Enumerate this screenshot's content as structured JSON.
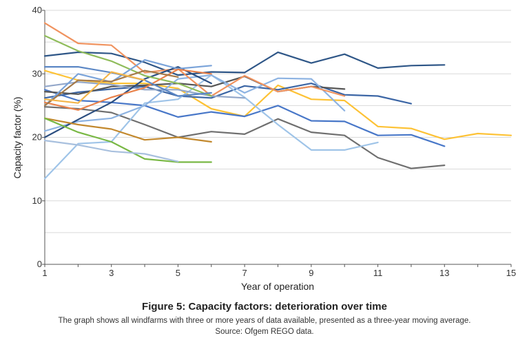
{
  "chart_data": {
    "type": "line",
    "title": "Figure 5: Capacity factors: deterioration over time",
    "subtitle": "The graph shows all windfarms with three or more years of data available, presented as a three-year moving average.",
    "source": "Source: Ofgem REGO data.",
    "xlabel": "Year of operation",
    "ylabel": "Capacity factor (%)",
    "xlim": [
      1,
      15
    ],
    "ylim": [
      0,
      40
    ],
    "xticks": [
      1,
      3,
      5,
      7,
      9,
      11,
      13,
      15
    ],
    "yticks": [
      0,
      10,
      20,
      30,
      40
    ],
    "grid": "horizontal",
    "series": [
      {
        "color": "#2e5687",
        "values": [
          [
            1,
            32.8
          ],
          [
            2,
            33.4
          ],
          [
            3,
            33.2
          ],
          [
            4,
            31.8
          ],
          [
            5,
            29.8
          ],
          [
            6,
            30.3
          ],
          [
            7,
            30.2
          ],
          [
            8,
            33.4
          ],
          [
            9,
            31.7
          ],
          [
            10,
            33.1
          ],
          [
            11,
            30.9
          ],
          [
            12,
            31.3
          ],
          [
            13,
            31.4
          ]
        ]
      },
      {
        "color": "#fdc235",
        "values": [
          [
            1,
            30.5
          ],
          [
            2,
            29
          ],
          [
            3,
            28.5
          ],
          [
            4,
            28.5
          ],
          [
            5,
            27.7
          ],
          [
            6,
            24.5
          ],
          [
            7,
            23.3
          ],
          [
            8,
            28.2
          ],
          [
            9,
            26
          ],
          [
            10,
            25.8
          ],
          [
            11,
            21.7
          ],
          [
            12,
            21.4
          ],
          [
            13,
            19.7
          ],
          [
            14,
            20.6
          ],
          [
            15,
            20.3
          ]
        ]
      },
      {
        "color": "#4877c8",
        "values": [
          [
            1,
            27.5
          ],
          [
            2,
            25.8
          ],
          [
            3,
            25.5
          ],
          [
            4,
            25
          ],
          [
            5,
            23.2
          ],
          [
            6,
            24
          ],
          [
            7,
            23.3
          ],
          [
            8,
            25
          ],
          [
            9,
            22.6
          ],
          [
            10,
            22.5
          ],
          [
            11,
            20.3
          ],
          [
            12,
            20.4
          ],
          [
            13,
            18.6
          ]
        ]
      },
      {
        "color": "#6f6f6f",
        "values": [
          [
            1,
            24.8
          ],
          [
            2,
            24.5
          ],
          [
            3,
            23.9
          ],
          [
            4,
            22
          ],
          [
            5,
            20
          ],
          [
            6,
            20.9
          ],
          [
            7,
            20.5
          ],
          [
            8,
            22.9
          ],
          [
            9,
            20.8
          ],
          [
            10,
            20.3
          ],
          [
            11,
            16.8
          ],
          [
            12,
            15.1
          ],
          [
            13,
            15.6
          ]
        ]
      },
      {
        "color": "#3c66a5",
        "values": [
          [
            1,
            26.2
          ],
          [
            2,
            27.1
          ],
          [
            3,
            27.6
          ],
          [
            4,
            28
          ],
          [
            5,
            26.5
          ],
          [
            6,
            26.2
          ],
          [
            7,
            28.1
          ],
          [
            8,
            27.5
          ],
          [
            9,
            28.5
          ],
          [
            10,
            26.7
          ],
          [
            11,
            26.5
          ],
          [
            12,
            25.3
          ]
        ]
      },
      {
        "color": "#9fc4e8",
        "values": [
          [
            1,
            13.5
          ],
          [
            2,
            19
          ],
          [
            3,
            19.3
          ],
          [
            4,
            25.4
          ],
          [
            5,
            26
          ],
          [
            6,
            29.8
          ],
          [
            7,
            26.3
          ],
          [
            8,
            22
          ],
          [
            9,
            18
          ],
          [
            10,
            18
          ],
          [
            11,
            19.2
          ]
        ]
      },
      {
        "color": "#555555",
        "values": [
          [
            1,
            27.2
          ],
          [
            2,
            26.8
          ],
          [
            3,
            28
          ],
          [
            4,
            28.2
          ],
          [
            5,
            28.5
          ],
          [
            6,
            28
          ],
          [
            7,
            29.6
          ],
          [
            8,
            27.2
          ],
          [
            9,
            28
          ],
          [
            10,
            27.6
          ]
        ]
      },
      {
        "color": "#8db3e2",
        "values": [
          [
            1,
            21
          ],
          [
            2,
            22.5
          ],
          [
            3,
            23
          ],
          [
            4,
            25
          ],
          [
            5,
            29.2
          ],
          [
            6,
            29.8
          ],
          [
            7,
            27
          ],
          [
            8,
            29.3
          ],
          [
            9,
            29.2
          ],
          [
            10,
            24.2
          ]
        ]
      },
      {
        "color": "#f0935f",
        "values": [
          [
            1,
            38
          ],
          [
            2,
            34.8
          ],
          [
            3,
            34.5
          ],
          [
            4,
            30.2
          ],
          [
            5,
            30.8
          ],
          [
            6,
            26.5
          ],
          [
            7,
            29.7
          ],
          [
            8,
            27.2
          ],
          [
            9,
            28
          ],
          [
            10,
            26.5
          ]
        ]
      },
      {
        "color": "#93a7c9",
        "values": [
          [
            1,
            28
          ],
          [
            2,
            28.7
          ],
          [
            3,
            28.3
          ],
          [
            4,
            27.5
          ],
          [
            5,
            27.5
          ],
          [
            6,
            26.5
          ],
          [
            7,
            26.2
          ]
        ]
      },
      {
        "color": "#2b4e80",
        "values": [
          [
            1,
            20
          ],
          [
            2,
            22.8
          ],
          [
            3,
            25.5
          ],
          [
            4,
            29.2
          ],
          [
            5,
            31.1
          ],
          [
            6,
            28.5
          ]
        ]
      },
      {
        "color": "#8fbc5a",
        "values": [
          [
            1,
            36
          ],
          [
            2,
            33.6
          ],
          [
            3,
            32
          ],
          [
            4,
            29.7
          ],
          [
            5,
            28.5
          ],
          [
            6,
            26.5
          ]
        ]
      },
      {
        "color": "#7aa3d9",
        "values": [
          [
            1,
            25
          ],
          [
            2,
            30
          ],
          [
            3,
            28.7
          ],
          [
            4,
            32.2
          ],
          [
            5,
            30.8
          ],
          [
            6,
            31.3
          ]
        ]
      },
      {
        "color": "#e9814a",
        "values": [
          [
            1,
            25.5
          ],
          [
            2,
            24.3
          ],
          [
            3,
            26.3
          ],
          [
            4,
            27.8
          ],
          [
            5,
            30.7
          ],
          [
            6,
            30
          ]
        ]
      },
      {
        "color": "#5b87c5",
        "values": [
          [
            1,
            31.1
          ],
          [
            2,
            31.1
          ],
          [
            3,
            30.2
          ],
          [
            4,
            29
          ],
          [
            5,
            26.5
          ],
          [
            6,
            27
          ]
        ]
      },
      {
        "color": "#c2882d",
        "values": [
          [
            1,
            23
          ],
          [
            2,
            22
          ],
          [
            3,
            21.3
          ],
          [
            4,
            19.6
          ],
          [
            5,
            20
          ],
          [
            6,
            19.3
          ]
        ]
      },
      {
        "color": "#79b844",
        "values": [
          [
            1,
            23
          ],
          [
            2,
            20.8
          ],
          [
            3,
            19.3
          ],
          [
            4,
            16.6
          ],
          [
            5,
            16.1
          ],
          [
            6,
            16.1
          ]
        ]
      },
      {
        "color": "#a8c0de",
        "values": [
          [
            1,
            19.5
          ],
          [
            2,
            18.8
          ],
          [
            3,
            17.8
          ],
          [
            4,
            17.4
          ],
          [
            5,
            16.2
          ]
        ]
      },
      {
        "color": "#a57a4a",
        "values": [
          [
            1,
            25
          ],
          [
            2,
            29
          ],
          [
            3,
            28.8
          ],
          [
            4,
            30.5
          ],
          [
            5,
            29.5
          ]
        ]
      },
      {
        "color": "#f3b54a",
        "values": [
          [
            1,
            26
          ],
          [
            2,
            25.4
          ],
          [
            3,
            30.3
          ],
          [
            4,
            29
          ]
        ]
      }
    ]
  }
}
